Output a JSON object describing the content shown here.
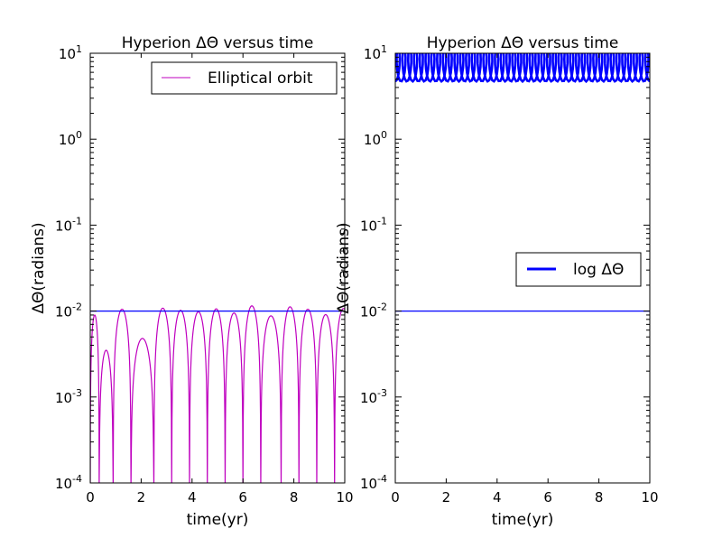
{
  "chart_data": [
    {
      "type": "line",
      "title": "Hyperion  ΔΘ versus time",
      "xlabel": "time(yr)",
      "ylabel": "ΔΘ(radians)",
      "xlim": [
        0,
        10
      ],
      "ylim": [
        0.0001,
        10
      ],
      "yscale": "log",
      "xticks": [
        "0",
        "2",
        "4",
        "6",
        "8",
        "10"
      ],
      "yticks": [
        {
          "base": "10",
          "exp": "-4"
        },
        {
          "base": "10",
          "exp": "-3"
        },
        {
          "base": "10",
          "exp": "-2"
        },
        {
          "base": "10",
          "exp": "-1"
        },
        {
          "base": "10",
          "exp": "0"
        },
        {
          "base": "10",
          "exp": "1"
        }
      ],
      "legend": {
        "position": "top-right",
        "entries": [
          "Elliptical orbit"
        ]
      },
      "series": [
        {
          "name": "Elliptical orbit",
          "color": "#bf00bf",
          "x": [
            0.0,
            0.35,
            0.9,
            1.6,
            2.5,
            3.2,
            3.9,
            4.6,
            5.3,
            6.0,
            6.7,
            7.5,
            8.2,
            8.9,
            9.6
          ],
          "y": [
            0.009,
            0.0035,
            0.0105,
            0.0048,
            0.0108,
            0.0102,
            0.0098,
            0.0106,
            0.0095,
            0.0115,
            0.0088,
            0.0112,
            0.0105,
            0.0091,
            0.0107
          ]
        },
        {
          "color": "#0000ff",
          "x": [
            0,
            10
          ],
          "y": [
            0.01,
            0.01
          ]
        }
      ]
    },
    {
      "type": "line",
      "title": "Hyperion  ΔΘ versus time",
      "xlabel": "time(yr)",
      "ylabel": "ΔΘ(radians)",
      "xlim": [
        0,
        10
      ],
      "ylim": [
        0.0001,
        10
      ],
      "yscale": "log",
      "xticks": [
        "0",
        "2",
        "4",
        "6",
        "8",
        "10"
      ],
      "yticks": [
        {
          "base": "10",
          "exp": "-4"
        },
        {
          "base": "10",
          "exp": "-3"
        },
        {
          "base": "10",
          "exp": "-2"
        },
        {
          "base": "10",
          "exp": "-1"
        },
        {
          "base": "10",
          "exp": "0"
        },
        {
          "base": "10",
          "exp": "1"
        }
      ],
      "legend": {
        "position": "center-right",
        "entries": [
          "log ΔΘ"
        ]
      },
      "series": [
        {
          "name": "log ΔΘ",
          "color": "#0000ff",
          "y_min": 4.7,
          "y_max": 10,
          "loops": 44
        },
        {
          "color": "#0000ff",
          "x": [
            0,
            10
          ],
          "y": [
            0.01,
            0.01
          ]
        }
      ]
    }
  ]
}
